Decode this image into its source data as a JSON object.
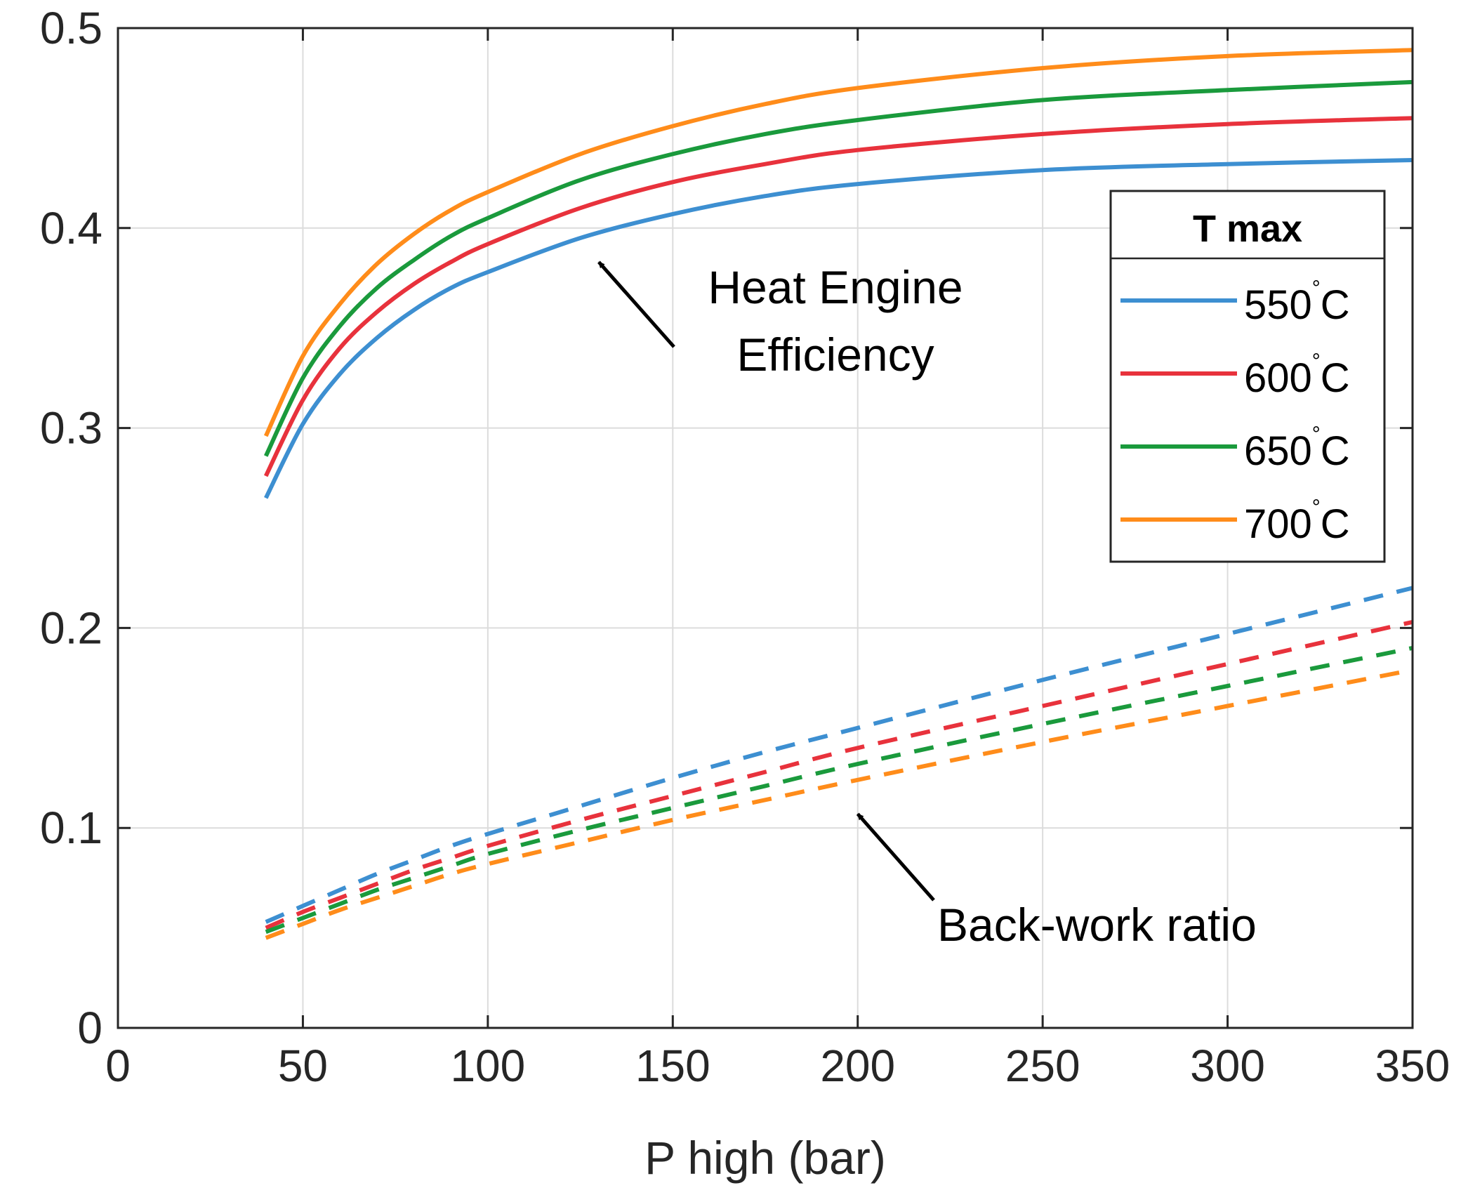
{
  "chart_data": {
    "type": "line",
    "title": "",
    "xlabel": "P high (bar)",
    "ylabel": "",
    "xlim": [
      0,
      350
    ],
    "ylim": [
      0,
      0.5
    ],
    "x_ticks": [
      "0",
      "50",
      "100",
      "150",
      "200",
      "250",
      "300",
      "350"
    ],
    "y_ticks": [
      "0",
      "0.1",
      "0.2",
      "0.3",
      "0.4",
      "0.5"
    ],
    "grid": true,
    "x": [
      40,
      50,
      60,
      70,
      80,
      90,
      100,
      125,
      150,
      175,
      200,
      250,
      300,
      350
    ],
    "series": [
      {
        "name": "550°C",
        "group": "Heat Engine Efficiency",
        "style": "solid",
        "color": "#3d8fd1",
        "values": [
          0.265,
          0.302,
          0.327,
          0.345,
          0.359,
          0.37,
          0.378,
          0.395,
          0.407,
          0.416,
          0.422,
          0.429,
          0.432,
          0.434
        ]
      },
      {
        "name": "600°C",
        "group": "Heat Engine Efficiency",
        "style": "solid",
        "color": "#e8323c",
        "values": [
          0.276,
          0.314,
          0.34,
          0.358,
          0.372,
          0.383,
          0.392,
          0.41,
          0.423,
          0.432,
          0.439,
          0.447,
          0.452,
          0.455
        ]
      },
      {
        "name": "650°C",
        "group": "Heat Engine Efficiency",
        "style": "solid",
        "color": "#1a9a3c",
        "values": [
          0.286,
          0.325,
          0.351,
          0.37,
          0.384,
          0.396,
          0.405,
          0.424,
          0.437,
          0.447,
          0.454,
          0.464,
          0.469,
          0.473
        ]
      },
      {
        "name": "700°C",
        "group": "Heat Engine Efficiency",
        "style": "solid",
        "color": "#ff8c1a",
        "values": [
          0.296,
          0.336,
          0.362,
          0.382,
          0.397,
          0.409,
          0.418,
          0.437,
          0.451,
          0.462,
          0.47,
          0.48,
          0.486,
          0.489
        ]
      },
      {
        "name": "550°C",
        "group": "Back-work ratio",
        "style": "dashed",
        "color": "#3d8fd1",
        "values": [
          0.053,
          0.061,
          0.069,
          0.077,
          0.084,
          0.091,
          0.097,
          0.111,
          0.125,
          0.138,
          0.15,
          0.174,
          0.197,
          0.22
        ]
      },
      {
        "name": "600°C",
        "group": "Back-work ratio",
        "style": "dashed",
        "color": "#e8323c",
        "values": [
          0.05,
          0.058,
          0.065,
          0.072,
          0.079,
          0.085,
          0.091,
          0.104,
          0.116,
          0.128,
          0.14,
          0.161,
          0.182,
          0.203
        ]
      },
      {
        "name": "650°C",
        "group": "Back-work ratio",
        "style": "dashed",
        "color": "#1a9a3c",
        "values": [
          0.048,
          0.055,
          0.062,
          0.069,
          0.075,
          0.081,
          0.087,
          0.099,
          0.11,
          0.121,
          0.132,
          0.152,
          0.171,
          0.19
        ]
      },
      {
        "name": "700°C",
        "group": "Back-work ratio",
        "style": "dashed",
        "color": "#ff8c1a",
        "values": [
          0.045,
          0.052,
          0.059,
          0.065,
          0.071,
          0.077,
          0.082,
          0.093,
          0.104,
          0.114,
          0.124,
          0.143,
          0.161,
          0.179
        ]
      }
    ],
    "legend": {
      "title": "T max",
      "placement": "right",
      "entries": [
        {
          "value": "550",
          "unit": "C",
          "color": "#3d8fd1"
        },
        {
          "value": "600",
          "unit": "C",
          "color": "#e8323c"
        },
        {
          "value": "650",
          "unit": "C",
          "color": "#1a9a3c"
        },
        {
          "value": "700",
          "unit": "C",
          "color": "#ff8c1a"
        }
      ]
    },
    "annotations": [
      {
        "lines": [
          "Heat Engine",
          "Efficiency"
        ],
        "points_to": {
          "x": 130,
          "y": 0.383
        }
      },
      {
        "lines": [
          "Back-work ratio"
        ],
        "points_to": {
          "x": 200,
          "y": 0.107
        }
      }
    ]
  }
}
